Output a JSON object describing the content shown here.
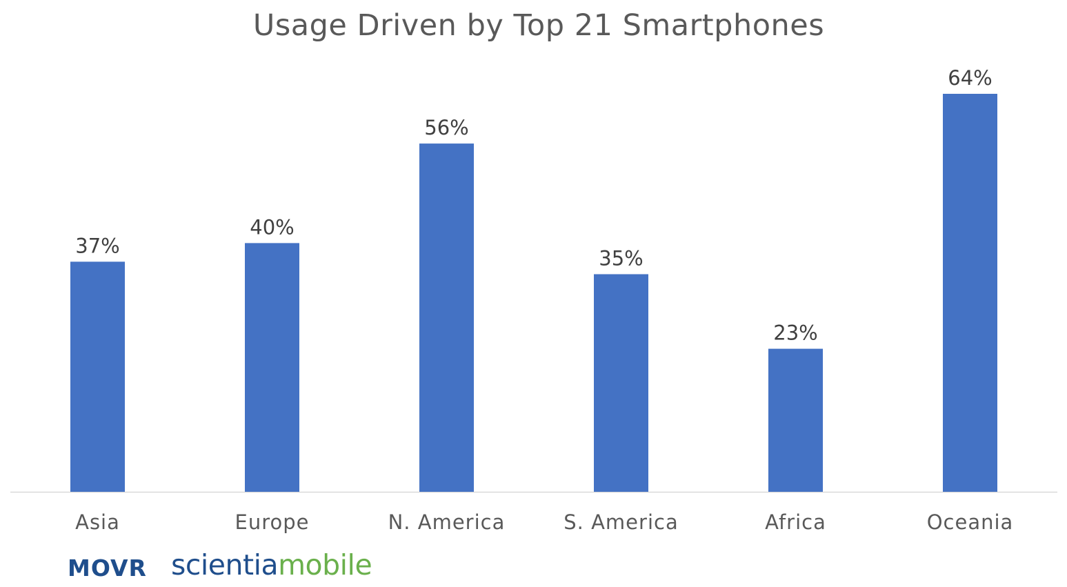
{
  "chart_data": {
    "type": "bar",
    "title": "Usage Driven by Top 21 Smartphones",
    "categories": [
      "Asia",
      "Europe",
      "N. America",
      "S. America",
      "Africa",
      "Oceania"
    ],
    "values": [
      37,
      40,
      56,
      35,
      23,
      64
    ],
    "value_labels": [
      "37%",
      "40%",
      "56%",
      "35%",
      "23%",
      "64%"
    ],
    "xlabel": "",
    "ylabel": "",
    "ylim": [
      0,
      64
    ],
    "grid": false,
    "legend": "none",
    "bar_color": "#4472C4"
  },
  "branding": {
    "movr": "MOVR",
    "movr_color": "#1F4E8C",
    "scientia_part1": "scientia",
    "scientia_part2": "mobile",
    "scientia_color1": "#1F4E8C",
    "scientia_color2": "#6AB04C"
  },
  "colors": {
    "title": "#595959",
    "axis": "#D9D9D9",
    "tick_label": "#595959",
    "data_label": "#404040"
  }
}
